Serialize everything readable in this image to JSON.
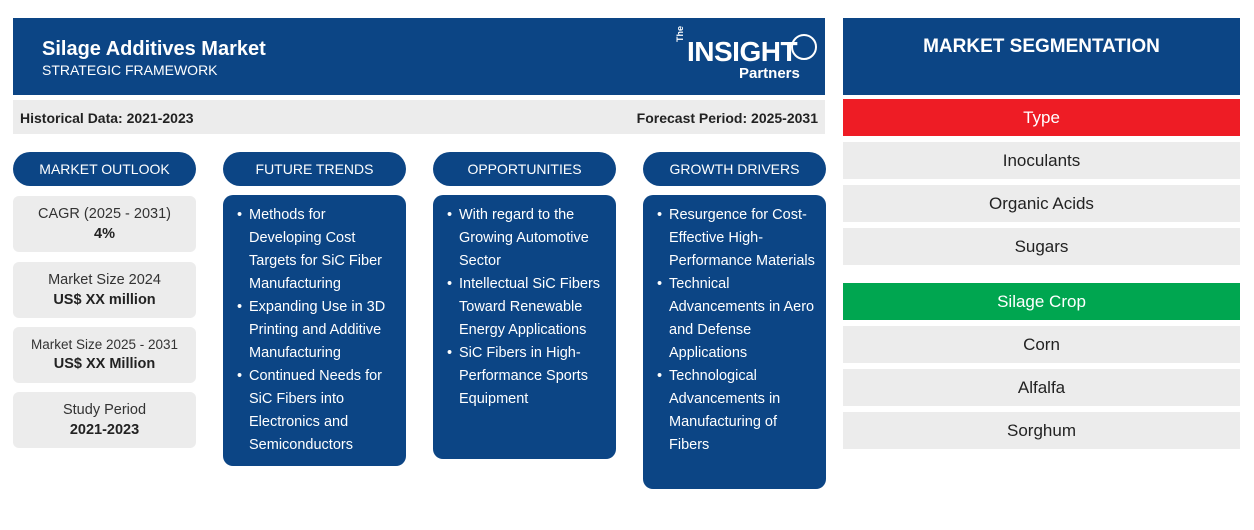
{
  "header": {
    "title": "Silage Additives Market",
    "subtitle": "STRATEGIC FRAMEWORK"
  },
  "logo": {
    "the": "The",
    "insight": "INSIGHT",
    "partners": "Partners"
  },
  "periods": {
    "historical": "Historical Data: 2021-2023",
    "forecast": "Forecast Period: 2025-2031"
  },
  "columns": {
    "outlook": "MARKET OUTLOOK",
    "trends": "FUTURE TRENDS",
    "opportunities": "OPPORTUNITIES",
    "drivers": "GROWTH DRIVERS"
  },
  "outlook": [
    {
      "label": "CAGR (2025 - 2031)",
      "value": "4%"
    },
    {
      "label": "Market Size 2024",
      "value": "US$ XX million"
    },
    {
      "label": "Market Size 2025 - 2031",
      "value": "US$ XX Million"
    },
    {
      "label": "Study Period",
      "value": "2021-2023"
    }
  ],
  "trends": [
    "Methods for Developing Cost Targets for SiC Fiber Manufacturing",
    "Expanding Use in 3D Printing and Additive Manufacturing",
    "Continued Needs for SiC Fibers into Electronics and Semiconductors"
  ],
  "opportunities": [
    "With regard to the Growing Automotive Sector",
    "Intellectual SiC Fibers Toward Renewable Energy Applications",
    "SiC Fibers in High-Performance Sports Equipment"
  ],
  "drivers": [
    "Resurgence for Cost-Effective High-Performance Materials",
    "Technical Advancements in Aero and Defense Applications",
    "Technological Advancements in Manufacturing of Fibers"
  ],
  "segmentation": {
    "title": "MARKET SEGMENTATION",
    "type": {
      "label": "Type",
      "color": "#ee1c25",
      "items": [
        "Inoculants",
        "Organic Acids",
        "Sugars"
      ]
    },
    "crop": {
      "label": "Silage Crop",
      "color": "#00a650",
      "items": [
        "Corn",
        "Alfalfa",
        "Sorghum"
      ]
    }
  },
  "colors": {
    "navy": "#0c4585",
    "light_gray": "#ececec"
  }
}
